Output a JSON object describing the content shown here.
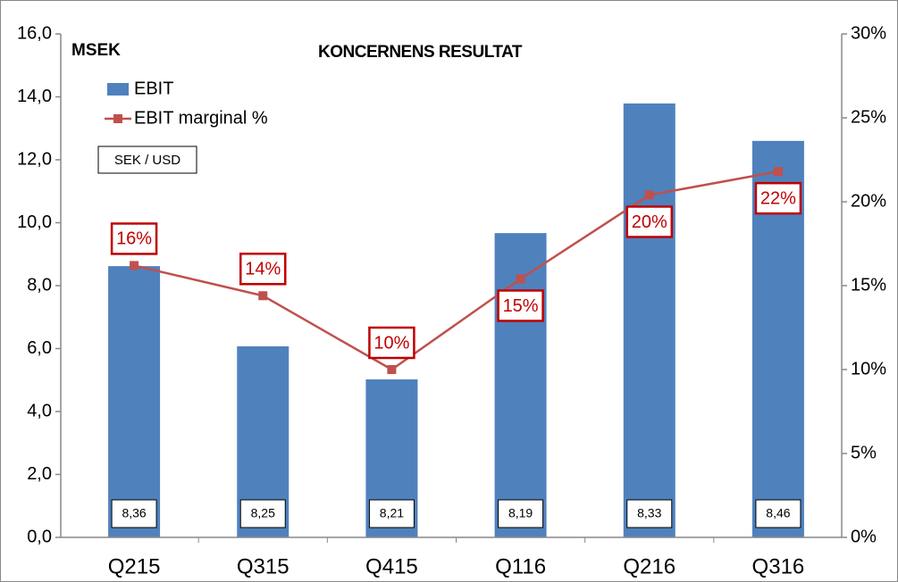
{
  "chart_data": {
    "type": "bar_line",
    "title": "KONCERNENS RESULTAT",
    "y_label": "MSEK",
    "annotation": "SEK / USD",
    "categories": [
      "Q215",
      "Q315",
      "Q415",
      "Q116",
      "Q216",
      "Q316"
    ],
    "series": [
      {
        "name": "EBIT",
        "type": "bar",
        "color": "#4f81bd",
        "values": [
          8.62,
          6.07,
          5.02,
          9.67,
          13.79,
          12.6
        ]
      },
      {
        "name": "EBIT marginal %",
        "type": "line",
        "axis": "y2",
        "color": "#c0504d",
        "values": [
          16.2,
          14.4,
          10.0,
          15.4,
          20.4,
          21.8
        ],
        "value_labels": [
          "16%",
          "14%",
          "10%",
          "15%",
          "20%",
          "22%"
        ]
      }
    ],
    "exchange_rates": [
      "8,36",
      "8,25",
      "8,21",
      "8,19",
      "8,33",
      "8,46"
    ],
    "ylim": [
      0,
      16
    ],
    "yticks": [
      {
        "value": 0,
        "label": "0,0"
      },
      {
        "value": 2,
        "label": "2,0"
      },
      {
        "value": 4,
        "label": "4,0"
      },
      {
        "value": 6,
        "label": "6,0"
      },
      {
        "value": 8,
        "label": "8,0"
      },
      {
        "value": 10,
        "label": "10,0"
      },
      {
        "value": 12,
        "label": "12,0"
      },
      {
        "value": 14,
        "label": "14,0"
      },
      {
        "value": 16,
        "label": "16,0"
      }
    ],
    "y2lim": [
      0,
      30
    ],
    "y2ticks": [
      {
        "value": 0,
        "label": "0%"
      },
      {
        "value": 5,
        "label": "5%"
      },
      {
        "value": 10,
        "label": "10%"
      },
      {
        "value": 15,
        "label": "15%"
      },
      {
        "value": 20,
        "label": "20%"
      },
      {
        "value": 25,
        "label": "25%"
      },
      {
        "value": 30,
        "label": "30%"
      }
    ],
    "grid": false
  }
}
